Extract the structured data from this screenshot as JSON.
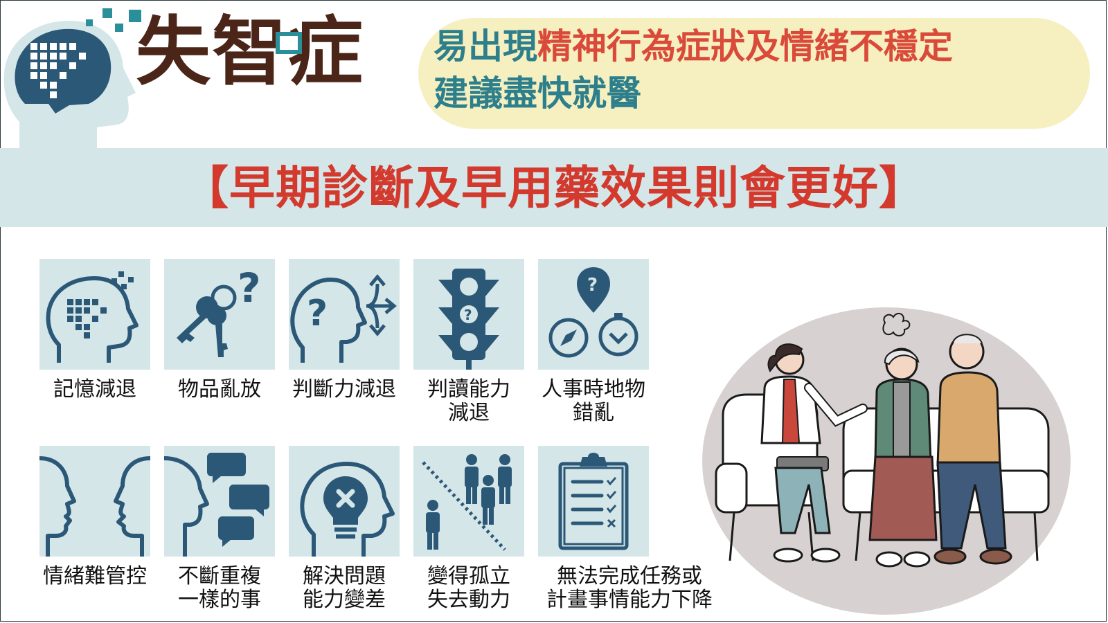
{
  "header": {
    "title": "失智症",
    "notice_line1_prefix": "易出現",
    "notice_line1_emphasis": "精神行為症狀及情緒不穩定",
    "notice_line2": "建議盡快就醫"
  },
  "banner": {
    "text": "【早期診斷及早用藥效果則會更好】"
  },
  "symptoms": [
    {
      "label": "記憶減退",
      "icon": "brain-pixel-icon"
    },
    {
      "label": "物品亂放",
      "icon": "keys-question-icon"
    },
    {
      "label": "判斷力減退",
      "icon": "head-arrows-icon"
    },
    {
      "label": "判讀能力\n減退",
      "icon": "traffic-light-icon"
    },
    {
      "label": "人事時地物\n錯亂",
      "icon": "location-compass-icon"
    },
    {
      "label": "情緒難管控",
      "icon": "faces-arguing-icon"
    },
    {
      "label": "不斷重複\n一樣的事",
      "icon": "head-speech-icon"
    },
    {
      "label": "解決問題\n能力變差",
      "icon": "broken-bulb-icon"
    },
    {
      "label": "變得孤立\n失去動力",
      "icon": "isolated-person-icon"
    },
    {
      "label": "無法完成任務或\n計畫事情能力下降",
      "icon": "clipboard-checklist-icon"
    }
  ],
  "colors": {
    "title_brown": "#4a2518",
    "teal": "#2d7f8c",
    "icon_navy": "#2c5878",
    "emphasis_red": "#d94a3a",
    "banner_red": "#d3392c",
    "tile_bg": "#d4e6e8",
    "pill_bg": "#f6efbf"
  }
}
